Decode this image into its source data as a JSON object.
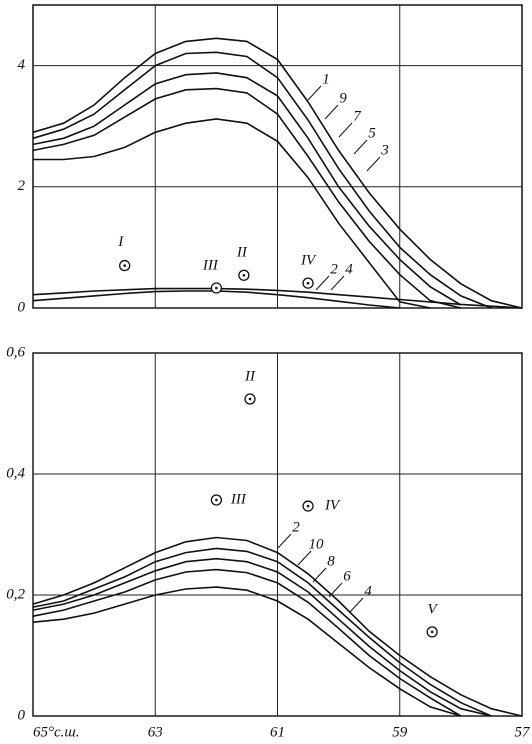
{
  "chart_data": [
    {
      "type": "line",
      "x": [
        65,
        64.5,
        64,
        63.5,
        63,
        62.5,
        62,
        61.5,
        61,
        60.5,
        60,
        59.5,
        59,
        58.5,
        58,
        57.5,
        57
      ],
      "xlim": [
        65,
        57
      ],
      "xticks": [
        63,
        61,
        59
      ],
      "ylim": [
        0,
        5
      ],
      "yticks": [
        0,
        2,
        4
      ],
      "grid": true,
      "series": [
        {
          "name": "1",
          "color": "#111",
          "values": [
            2.9,
            3.05,
            3.35,
            3.8,
            4.2,
            4.4,
            4.45,
            4.4,
            4.1,
            3.4,
            2.6,
            1.9,
            1.3,
            0.8,
            0.4,
            0.12,
            0
          ]
        },
        {
          "name": "9",
          "color": "#111",
          "values": [
            2.8,
            2.95,
            3.2,
            3.6,
            4.0,
            4.2,
            4.22,
            4.15,
            3.8,
            3.1,
            2.3,
            1.6,
            1.0,
            0.55,
            0.2,
            0,
            null
          ]
        },
        {
          "name": "7",
          "color": "#111",
          "values": [
            2.7,
            2.8,
            3.0,
            3.35,
            3.7,
            3.85,
            3.88,
            3.8,
            3.5,
            2.8,
            2.0,
            1.35,
            0.8,
            0.35,
            0.05,
            null,
            null
          ]
        },
        {
          "name": "5",
          "color": "#111",
          "values": [
            2.6,
            2.7,
            2.85,
            3.15,
            3.45,
            3.6,
            3.62,
            3.55,
            3.2,
            2.5,
            1.75,
            1.1,
            0.55,
            0.12,
            0,
            null,
            null
          ]
        },
        {
          "name": "3",
          "color": "#111",
          "values": [
            2.45,
            2.45,
            2.5,
            2.65,
            2.9,
            3.05,
            3.12,
            3.05,
            2.75,
            2.15,
            1.4,
            0.75,
            0.1,
            0,
            null,
            null,
            null
          ]
        },
        {
          "name": "2",
          "color": "#111",
          "values": [
            0.22,
            0.25,
            0.28,
            0.3,
            0.32,
            0.32,
            0.32,
            0.31,
            0.29,
            0.26,
            0.22,
            0.18,
            0.14,
            0.1,
            0.06,
            0.03,
            0
          ]
        },
        {
          "name": "4",
          "color": "#111",
          "values": [
            0.12,
            0.16,
            0.2,
            0.24,
            0.27,
            0.28,
            0.28,
            0.26,
            0.22,
            0.17,
            0.11,
            0.05,
            0,
            null,
            null,
            null,
            null
          ]
        }
      ],
      "points": [
        {
          "label": "I",
          "x": 63.5,
          "y": 0.7
        },
        {
          "label": "II",
          "x": 61.55,
          "y": 0.54
        },
        {
          "label": "III",
          "x": 62.0,
          "y": 0.33
        },
        {
          "label": "IV",
          "x": 60.5,
          "y": 0.41
        }
      ]
    },
    {
      "type": "line",
      "x": [
        65,
        64.5,
        64,
        63.5,
        63,
        62.5,
        62,
        61.5,
        61,
        60.5,
        60,
        59.5,
        59,
        58.5,
        58,
        57.5,
        57
      ],
      "xlim": [
        65,
        57
      ],
      "xticks": [
        {
          "value": 65,
          "label": "65°с.ш."
        },
        63,
        61,
        59,
        57
      ],
      "ylim": [
        0,
        0.6
      ],
      "yticks": [
        0,
        {
          "value": 0.2,
          "label": "0,2"
        },
        {
          "value": 0.4,
          "label": "0,4"
        },
        {
          "value": 0.6,
          "label": "0,6"
        }
      ],
      "grid": true,
      "series": [
        {
          "name": "2",
          "color": "#111",
          "values": [
            0.185,
            0.2,
            0.22,
            0.245,
            0.27,
            0.288,
            0.295,
            0.29,
            0.27,
            0.235,
            0.19,
            0.14,
            0.1,
            0.065,
            0.035,
            0.012,
            0
          ]
        },
        {
          "name": "10",
          "color": "#111",
          "values": [
            0.18,
            0.19,
            0.21,
            0.23,
            0.255,
            0.27,
            0.277,
            0.272,
            0.255,
            0.22,
            0.175,
            0.13,
            0.088,
            0.052,
            0.022,
            0,
            null
          ]
        },
        {
          "name": "8",
          "color": "#111",
          "values": [
            0.175,
            0.185,
            0.2,
            0.22,
            0.24,
            0.255,
            0.26,
            0.255,
            0.238,
            0.205,
            0.16,
            0.115,
            0.075,
            0.04,
            0.012,
            0,
            null
          ]
        },
        {
          "name": "6",
          "color": "#111",
          "values": [
            0.165,
            0.175,
            0.19,
            0.205,
            0.225,
            0.238,
            0.242,
            0.237,
            0.22,
            0.188,
            0.145,
            0.1,
            0.062,
            0.03,
            0,
            null,
            null
          ]
        },
        {
          "name": "4",
          "color": "#111",
          "values": [
            0.155,
            0.16,
            0.17,
            0.185,
            0.2,
            0.21,
            0.213,
            0.208,
            0.19,
            0.16,
            0.12,
            0.08,
            0.045,
            0.015,
            0,
            null,
            null
          ]
        }
      ],
      "points": [
        {
          "label": "II",
          "x": 61.45,
          "y": 0.524
        },
        {
          "label": "III",
          "x": 62.0,
          "y": 0.357
        },
        {
          "label": "IV",
          "x": 60.5,
          "y": 0.347
        },
        {
          "label": "V",
          "x": 58.47,
          "y": 0.139
        }
      ]
    }
  ]
}
